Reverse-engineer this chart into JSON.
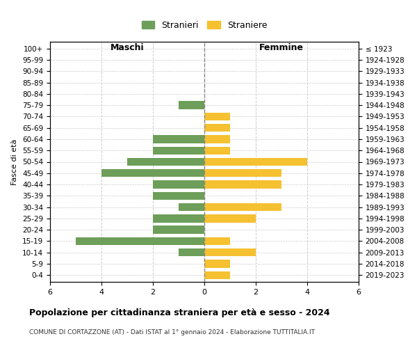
{
  "age_groups": [
    "0-4",
    "5-9",
    "10-14",
    "15-19",
    "20-24",
    "25-29",
    "30-34",
    "35-39",
    "40-44",
    "45-49",
    "50-54",
    "55-59",
    "60-64",
    "65-69",
    "70-74",
    "75-79",
    "80-84",
    "85-89",
    "90-94",
    "95-99",
    "100+"
  ],
  "birth_years": [
    "2019-2023",
    "2014-2018",
    "2009-2013",
    "2004-2008",
    "1999-2003",
    "1994-1998",
    "1989-1993",
    "1984-1988",
    "1979-1983",
    "1974-1978",
    "1969-1973",
    "1964-1968",
    "1959-1963",
    "1954-1958",
    "1949-1953",
    "1944-1948",
    "1939-1943",
    "1934-1938",
    "1929-1933",
    "1924-1928",
    "≤ 1923"
  ],
  "maschi": [
    0,
    0,
    1,
    5,
    2,
    2,
    1,
    2,
    2,
    4,
    3,
    2,
    2,
    0,
    0,
    1,
    0,
    0,
    0,
    0,
    0
  ],
  "femmine": [
    1,
    1,
    2,
    1,
    0,
    2,
    3,
    0,
    3,
    3,
    4,
    1,
    1,
    1,
    1,
    0,
    0,
    0,
    0,
    0,
    0
  ],
  "color_maschi": "#6d9e5a",
  "color_femmine": "#f5c130",
  "title": "Popolazione per cittadinanza straniera per età e sesso - 2024",
  "subtitle": "COMUNE DI CORTAZZONE (AT) - Dati ISTAT al 1° gennaio 2024 - Elaborazione TUTTITALIA.IT",
  "label_maschi": "Stranieri",
  "label_femmine": "Straniere",
  "xlabel_left": "Maschi",
  "xlabel_right": "Femmine",
  "ylabel_left": "Fasce di età",
  "xlim": 6,
  "background_color": "#ffffff",
  "grid_color": "#cccccc"
}
